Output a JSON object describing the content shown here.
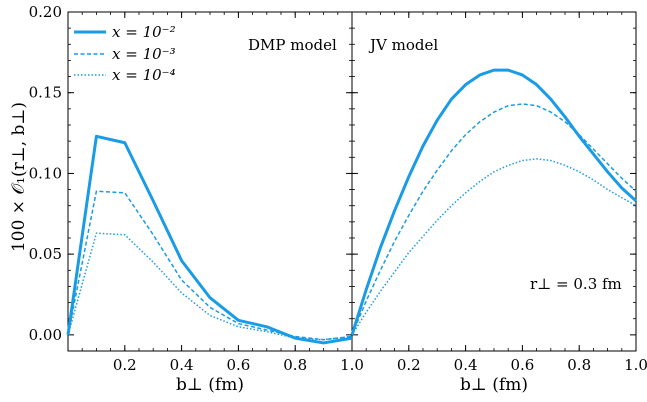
{
  "chart_data": {
    "type": "line",
    "ylabel": "100 × 𝒪₁(r⊥, b⊥)",
    "ylim": [
      -0.01,
      0.2
    ],
    "yticks": [
      "0.00",
      "0.05",
      "0.10",
      "0.15",
      "0.20"
    ],
    "ytick_values": [
      0.0,
      0.05,
      0.1,
      0.15,
      0.2
    ],
    "legend": {
      "placement": "top-left",
      "entries": [
        "x = 10⁻²",
        "x = 10⁻³",
        "x = 10⁻⁴"
      ]
    },
    "annotation": "r⊥ = 0.3 fm",
    "series_color": "#1a9be6",
    "panels": [
      {
        "model_label": "DMP model",
        "xlabel": "b⊥ (fm)",
        "xlim": [
          0,
          1.0
        ],
        "xtick_values": [
          0.2,
          0.4,
          0.6,
          0.8,
          1.0
        ],
        "xticks": [
          "0.2",
          "0.4",
          "0.6",
          "0.8",
          "1.0"
        ],
        "series": [
          {
            "name": "x = 10⁻²",
            "style": "solid",
            "x": [
              0,
              0.1,
              0.2,
              0.3,
              0.4,
              0.5,
              0.6,
              0.7,
              0.8,
              0.9,
              1.0
            ],
            "y": [
              0.0,
              0.123,
              0.119,
              0.083,
              0.046,
              0.023,
              0.009,
              0.005,
              -0.002,
              -0.005,
              -0.002
            ]
          },
          {
            "name": "x = 10⁻³",
            "style": "dashed",
            "x": [
              0,
              0.1,
              0.2,
              0.3,
              0.4,
              0.5,
              0.6,
              0.7,
              0.8,
              0.9,
              1.0
            ],
            "y": [
              0.0,
              0.089,
              0.088,
              0.062,
              0.034,
              0.017,
              0.007,
              0.003,
              -0.001,
              -0.003,
              -0.001
            ]
          },
          {
            "name": "x = 10⁻⁴",
            "style": "dotted",
            "x": [
              0,
              0.1,
              0.2,
              0.3,
              0.4,
              0.5,
              0.6,
              0.7,
              0.8,
              0.9,
              1.0
            ],
            "y": [
              0.0,
              0.063,
              0.062,
              0.045,
              0.026,
              0.012,
              0.005,
              0.002,
              -0.002,
              -0.003,
              -0.001
            ]
          }
        ]
      },
      {
        "model_label": "JV model",
        "xlabel": "b⊥ (fm)",
        "xlim": [
          0,
          1.0
        ],
        "xtick_values": [
          0.2,
          0.4,
          0.6,
          0.8,
          1.0
        ],
        "xticks": [
          "0.2",
          "0.4",
          "0.6",
          "0.8",
          "1.0"
        ],
        "series": [
          {
            "name": "x = 10⁻²",
            "style": "solid",
            "x": [
              0,
              0.05,
              0.1,
              0.15,
              0.2,
              0.25,
              0.3,
              0.35,
              0.4,
              0.45,
              0.5,
              0.55,
              0.6,
              0.65,
              0.7,
              0.75,
              0.8,
              0.85,
              0.9,
              0.95,
              1.0
            ],
            "y": [
              0.0,
              0.028,
              0.054,
              0.077,
              0.098,
              0.117,
              0.133,
              0.146,
              0.155,
              0.161,
              0.164,
              0.164,
              0.161,
              0.155,
              0.146,
              0.135,
              0.123,
              0.112,
              0.101,
              0.091,
              0.083
            ]
          },
          {
            "name": "x = 10⁻³",
            "style": "dashed",
            "x": [
              0,
              0.05,
              0.1,
              0.15,
              0.2,
              0.25,
              0.3,
              0.35,
              0.4,
              0.45,
              0.5,
              0.55,
              0.6,
              0.65,
              0.7,
              0.75,
              0.8,
              0.85,
              0.9,
              0.95,
              1.0
            ],
            "y": [
              0.0,
              0.021,
              0.04,
              0.058,
              0.074,
              0.089,
              0.102,
              0.114,
              0.124,
              0.132,
              0.138,
              0.142,
              0.143,
              0.142,
              0.138,
              0.132,
              0.124,
              0.115,
              0.106,
              0.097,
              0.089
            ]
          },
          {
            "name": "x = 10⁻⁴",
            "style": "dotted",
            "x": [
              0,
              0.05,
              0.1,
              0.15,
              0.2,
              0.25,
              0.3,
              0.35,
              0.4,
              0.45,
              0.5,
              0.55,
              0.6,
              0.65,
              0.7,
              0.75,
              0.8,
              0.85,
              0.9,
              0.95,
              1.0
            ],
            "y": [
              0.0,
              0.014,
              0.027,
              0.039,
              0.051,
              0.061,
              0.071,
              0.08,
              0.088,
              0.095,
              0.101,
              0.105,
              0.108,
              0.109,
              0.108,
              0.105,
              0.101,
              0.096,
              0.09,
              0.085,
              0.08
            ]
          }
        ]
      }
    ]
  }
}
